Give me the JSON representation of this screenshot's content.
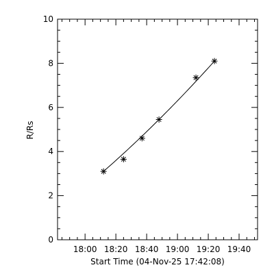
{
  "chart_data": {
    "type": "line",
    "title": "",
    "xlabel": "Start Time (04-Nov-25 17:42:08)",
    "ylabel": "R/Rs",
    "x_tick_labels": [
      "18:00",
      "18:20",
      "18:40",
      "19:00",
      "19:20",
      "19:40"
    ],
    "y_tick_labels": [
      "0",
      "2",
      "4",
      "6",
      "8",
      "10"
    ],
    "x_tick_values": [
      "18:00",
      "18:20",
      "18:40",
      "19:00",
      "19:20",
      "19:40"
    ],
    "y_tick_values": [
      0,
      2,
      4,
      6,
      8,
      10
    ],
    "xlim": [
      "17:42:08",
      "19:52:00"
    ],
    "ylim": [
      0,
      10
    ],
    "grid": false,
    "series": [
      {
        "marker": "asterisk",
        "line": "smooth-fit",
        "x": [
          "18:12",
          "18:25",
          "18:37",
          "18:48",
          "19:12",
          "19:24"
        ],
        "y": [
          3.1,
          3.65,
          4.6,
          5.45,
          7.35,
          8.1
        ]
      }
    ],
    "fit_line": {
      "x": [
        "18:12",
        "19:24"
      ],
      "y": [
        3.1,
        8.1
      ]
    }
  }
}
